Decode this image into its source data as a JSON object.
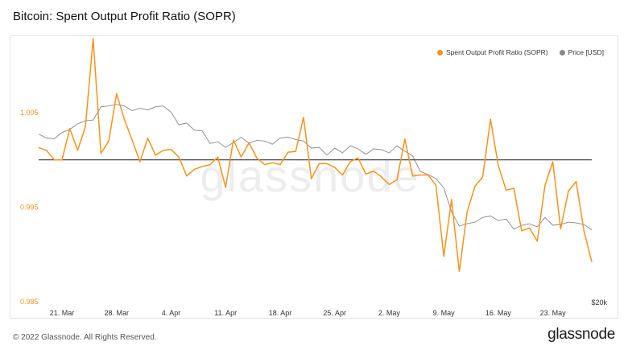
{
  "header": {
    "title": "Bitcoin: Spent Output Profit Ratio (SOPR)"
  },
  "footer": {
    "copyright": "© 2022 Glassnode. All Rights Reserved.",
    "brand": "glassnode"
  },
  "watermark": "glassnode",
  "chart_data": {
    "type": "line",
    "title": "Bitcoin: Spent Output Profit Ratio (SOPR)",
    "legend": {
      "position": "top-right"
    },
    "x_ticks": [
      "21. Mar",
      "28. Mar",
      "4. Apr",
      "11. Apr",
      "18. Apr",
      "25. Apr",
      "2. May",
      "9. May",
      "16. May",
      "23. May"
    ],
    "y_left": {
      "ticks": [
        "0.985",
        "0.995",
        "1.005"
      ],
      "tick_values": [
        0.985,
        0.995,
        1.005
      ],
      "range": [
        0.985,
        1.0118
      ],
      "color": "#f7931a"
    },
    "y_right": {
      "ticks": [
        "$20k"
      ],
      "label_color": "#333333"
    },
    "reference_line": {
      "value": 1.0,
      "color": "#333333"
    },
    "series": [
      {
        "name": "Spent Output Profit Ratio (SOPR)",
        "color": "#f7931a",
        "axis": "left",
        "values": [
          1.0013,
          1.001,
          1.0,
          1.0,
          1.0033,
          1.001,
          1.0035,
          1.0128,
          1.0007,
          1.002,
          1.007,
          1.0043,
          1.0021,
          0.9998,
          1.0023,
          1.0005,
          1.001,
          1.0011,
          1.0003,
          0.9983,
          0.999,
          0.9993,
          0.9995,
          1.0003,
          0.9971,
          1.0021,
          1.0003,
          1.0018,
          1.0002,
          0.9995,
          0.9997,
          0.9995,
          1.0008,
          1.0009,
          1.0045,
          0.998,
          0.9996,
          0.9996,
          0.9992,
          0.9984,
          0.9998,
          1.0002,
          0.9985,
          0.9988,
          0.9982,
          0.9974,
          0.9979,
          1.0022,
          0.9983,
          0.9984,
          0.9984,
          0.9973,
          0.9898,
          0.9958,
          0.9882,
          0.9945,
          0.9972,
          0.9982,
          1.0043,
          0.9994,
          0.9968,
          0.997,
          0.9925,
          0.9928,
          0.9914,
          0.9973,
          0.9998,
          0.9927,
          0.9967,
          0.9977,
          0.9925,
          0.9892
        ]
      },
      {
        "name": "Price [USD]",
        "color": "#888888",
        "axis": "right",
        "values": [
          41000,
          40500,
          40400,
          41200,
          41600,
          42300,
          42700,
          42800,
          44500,
          44600,
          44800,
          44600,
          44000,
          44300,
          44100,
          44500,
          44600,
          43800,
          42200,
          42400,
          41500,
          41400,
          39800,
          40000,
          39300,
          39900,
          40600,
          39800,
          40200,
          40100,
          39700,
          40500,
          40600,
          40300,
          40100,
          39200,
          39300,
          38300,
          39200,
          38600,
          39500,
          39100,
          38400,
          39100,
          39000,
          38600,
          39500,
          38800,
          38200,
          36200,
          35800,
          35300,
          34100,
          31000,
          29200,
          29500,
          29700,
          30300,
          30500,
          29900,
          30100,
          28800,
          29300,
          29500,
          29100,
          30300,
          29300,
          29400,
          29700,
          29600,
          29400,
          28700
        ]
      }
    ]
  }
}
